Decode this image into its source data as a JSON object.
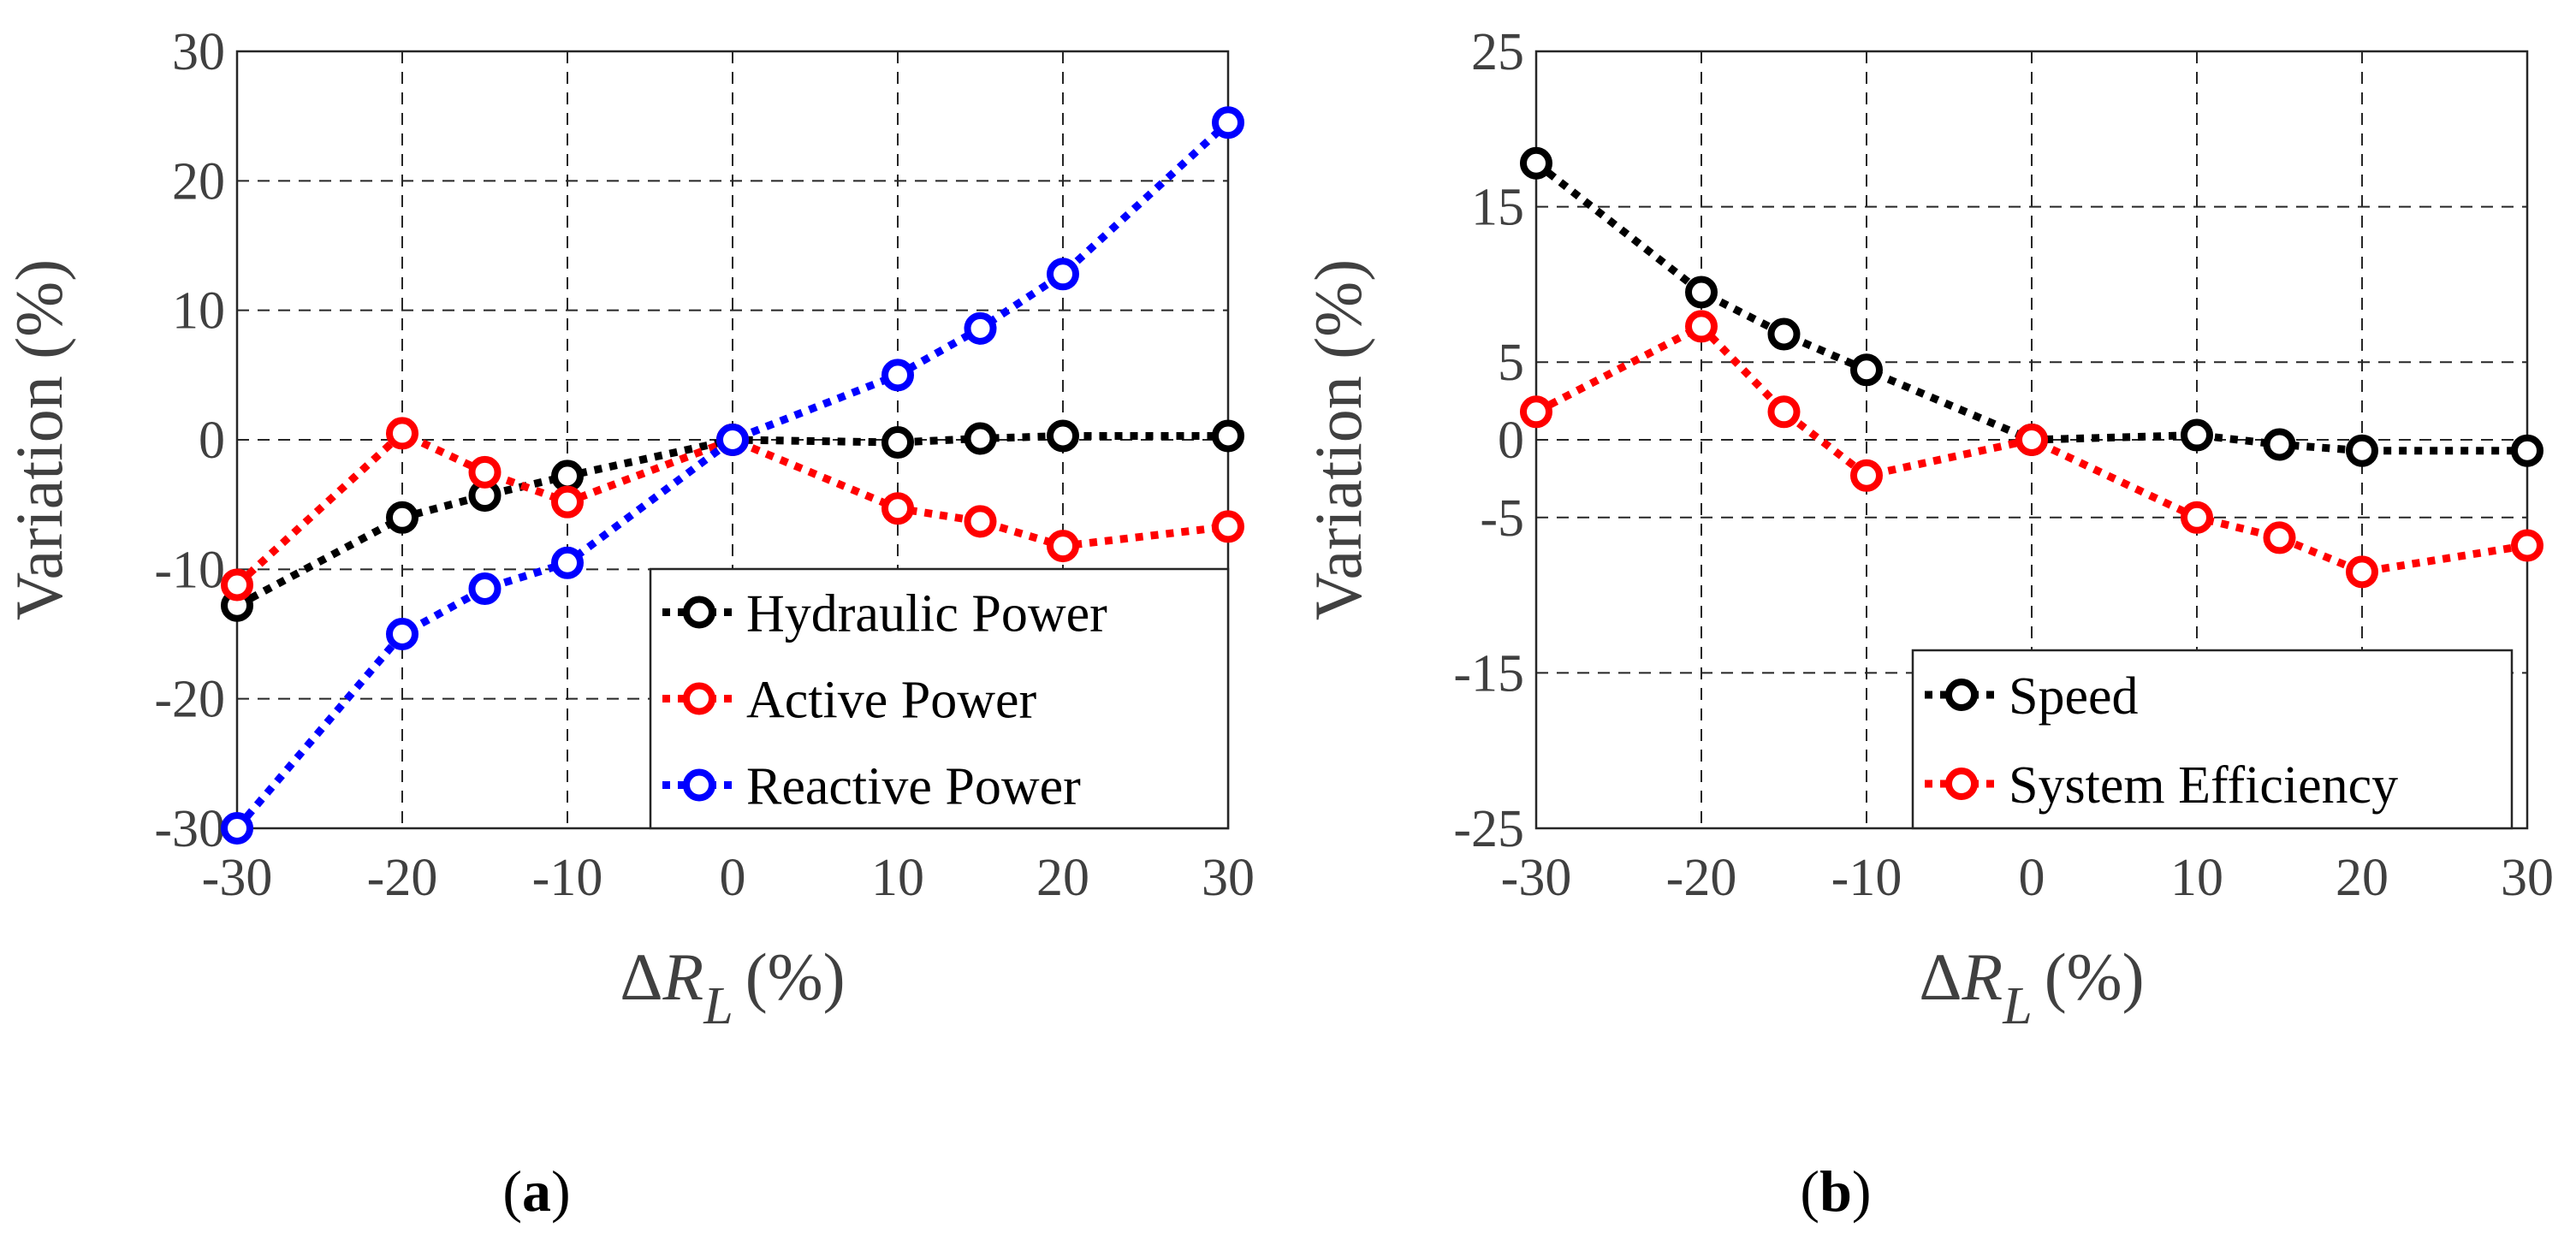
{
  "chart_data": [
    {
      "type": "line",
      "panel_label": "a",
      "xlabel_symbol": "Δ",
      "xlabel_var": "R",
      "xlabel_sub": "L",
      "xlabel_unit": "(%)",
      "ylabel": "Variation (%)",
      "xlim": [
        -30,
        30
      ],
      "ylim": [
        -30,
        30
      ],
      "xticks": [
        -30,
        -20,
        -10,
        0,
        10,
        20,
        30
      ],
      "yticks": [
        -30,
        -20,
        -10,
        0,
        10,
        20,
        30
      ],
      "grid": true,
      "legend_position": "bottom-right",
      "x": [
        -30,
        -20,
        -15,
        -10,
        0,
        10,
        15,
        20,
        30
      ],
      "series": [
        {
          "name": "Hydraulic Power",
          "color": "#000000",
          "values": [
            -12.8,
            -6.0,
            -4.3,
            -2.8,
            0.0,
            -0.2,
            0.1,
            0.3,
            0.3
          ]
        },
        {
          "name": "Active Power",
          "color": "#ff0000",
          "values": [
            -11.2,
            0.5,
            -2.5,
            -4.8,
            0.0,
            -5.3,
            -6.3,
            -8.2,
            -6.7
          ]
        },
        {
          "name": "Reactive Power",
          "color": "#0000ff",
          "values": [
            -30.0,
            -15.0,
            -11.5,
            -9.5,
            0.0,
            5.0,
            8.6,
            12.8,
            24.5
          ]
        }
      ]
    },
    {
      "type": "line",
      "panel_label": "b",
      "xlabel_symbol": "Δ",
      "xlabel_var": "R",
      "xlabel_sub": "L",
      "xlabel_unit": "(%)",
      "ylabel": "Variation (%)",
      "xlim": [
        -30,
        30
      ],
      "ylim": [
        -25,
        25
      ],
      "xticks": [
        -30,
        -20,
        -10,
        0,
        10,
        20,
        30
      ],
      "yticks": [
        -25,
        -15,
        -5,
        0,
        5,
        15,
        25
      ],
      "grid": true,
      "legend_position": "bottom-right",
      "x": [
        -30,
        -20,
        -15,
        -10,
        0,
        10,
        15,
        20,
        30
      ],
      "series": [
        {
          "name": "Speed",
          "color": "#000000",
          "values": [
            17.8,
            9.5,
            6.8,
            4.5,
            0.0,
            0.3,
            -0.3,
            -0.7,
            -0.7
          ]
        },
        {
          "name": "System Efficiency",
          "color": "#ff0000",
          "values": [
            1.8,
            7.3,
            1.8,
            -2.3,
            0.0,
            -5.0,
            -6.3,
            -8.5,
            -6.8
          ]
        }
      ]
    }
  ]
}
